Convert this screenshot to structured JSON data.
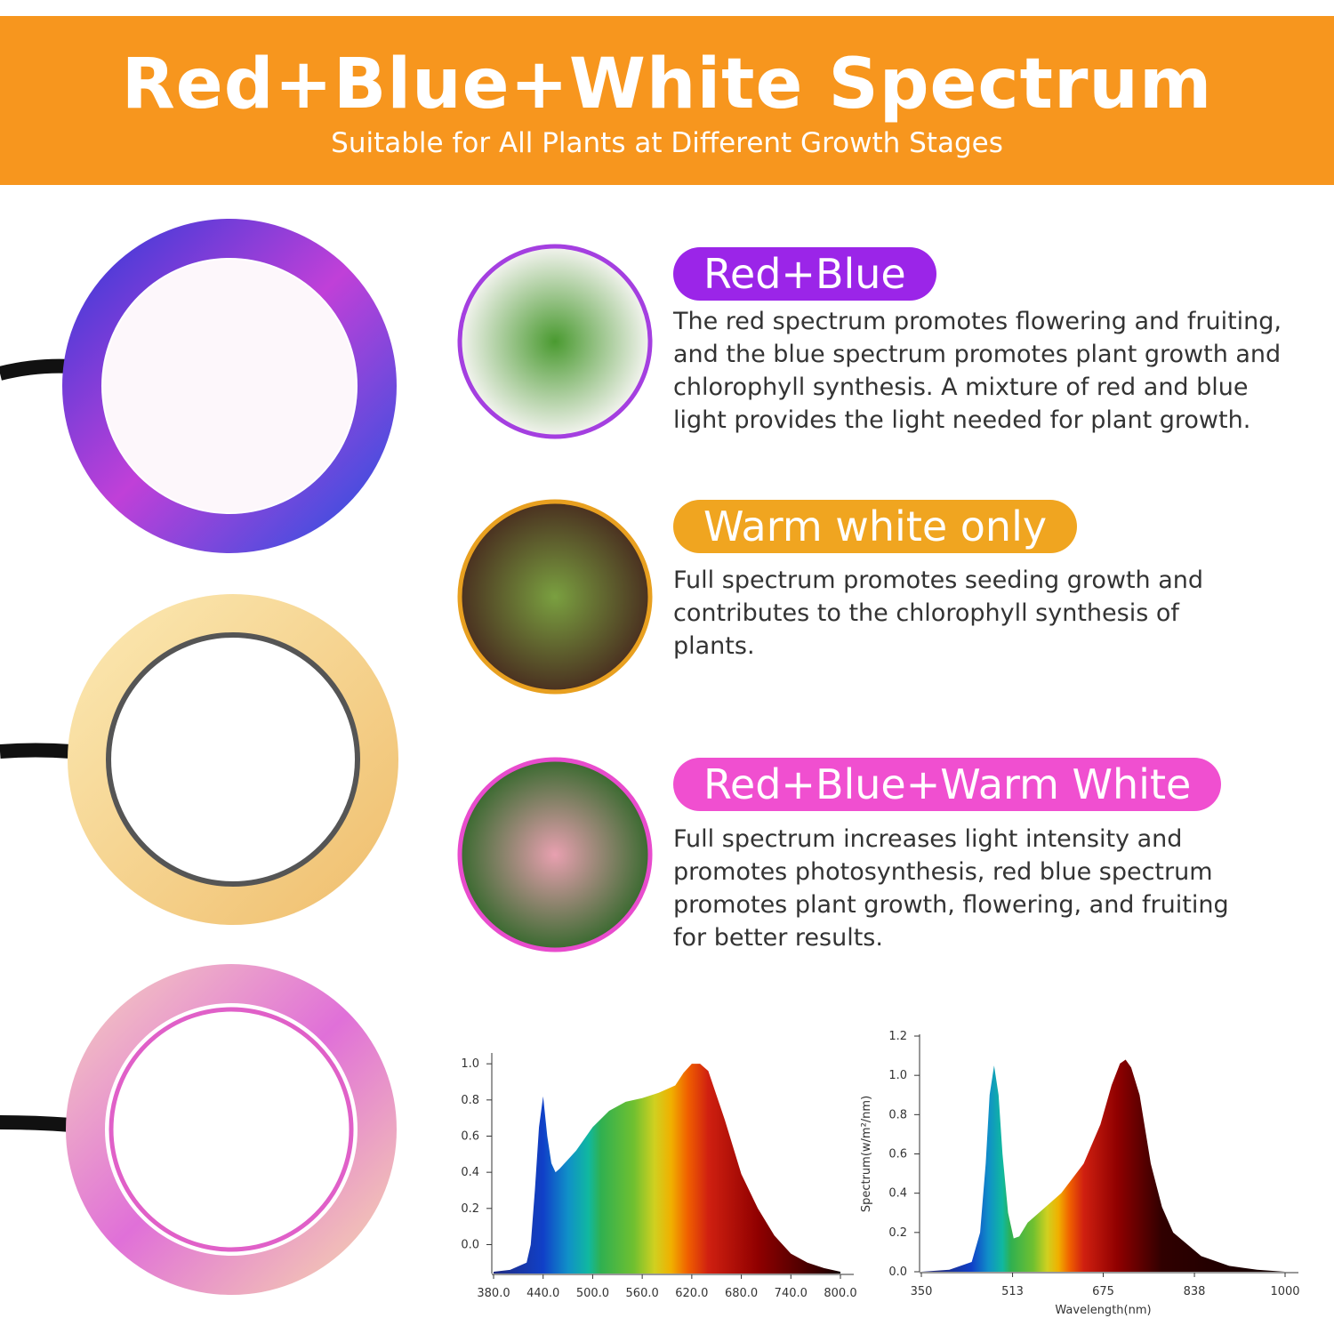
{
  "header": {
    "title": "Red+Blue+White Spectrum",
    "subtitle": "Suitable for All Plants at Different Growth Stages"
  },
  "sections": [
    {
      "title": "Red+Blue",
      "text": "The red spectrum promotes flowering and fruiting, and the blue spectrum promotes plant growth and chlorophyll synthesis. A mixture of red and blue light provides the light needed for plant growth."
    },
    {
      "title": "Warm white only",
      "text": "Full spectrum promotes seeding growth and contributes to the chlorophyll synthesis of plants."
    },
    {
      "title": "Red+Blue+Warm White",
      "text": "Full spectrum increases light intensity and promotes photosynthesis, red blue spectrum promotes plant growth, flowering, and fruiting for better results."
    }
  ],
  "chart_data": [
    {
      "type": "area",
      "x": [
        380,
        400,
        420,
        425,
        430,
        435,
        440,
        445,
        450,
        455,
        460,
        480,
        500,
        520,
        540,
        560,
        580,
        600,
        610,
        620,
        630,
        640,
        660,
        680,
        700,
        720,
        740,
        760,
        780,
        800
      ],
      "values": [
        -0.15,
        -0.14,
        -0.1,
        0.0,
        0.3,
        0.65,
        0.82,
        0.6,
        0.45,
        0.4,
        0.42,
        0.52,
        0.65,
        0.74,
        0.79,
        0.81,
        0.84,
        0.88,
        0.95,
        1.0,
        1.0,
        0.96,
        0.69,
        0.39,
        0.2,
        0.05,
        -0.05,
        -0.1,
        -0.13,
        -0.15
      ],
      "xlim": [
        380,
        800
      ],
      "ylim": [
        -0.16,
        1.05
      ],
      "xticks": [
        {
          "value": 380,
          "label": "380.0"
        },
        {
          "value": 440,
          "label": "440.0"
        },
        {
          "value": 500,
          "label": "500.0"
        },
        {
          "value": 560,
          "label": "560.0"
        },
        {
          "value": 620,
          "label": "620.0"
        },
        {
          "value": 680,
          "label": "680.0"
        },
        {
          "value": 740,
          "label": "740.0"
        },
        {
          "value": 800,
          "label": "800.0"
        }
      ],
      "yticks": [
        {
          "value": 0,
          "label": "0.0"
        },
        {
          "value": 0.2,
          "label": "0.2"
        },
        {
          "value": 0.4,
          "label": "0.4"
        },
        {
          "value": 0.6,
          "label": "0.6"
        },
        {
          "value": 0.8,
          "label": "0.8"
        },
        {
          "value": 1,
          "label": "1.0"
        }
      ]
    },
    {
      "type": "area",
      "xlabel": "Wavelength(nm)",
      "ylabel": "Spectrum(w/m²/nm)",
      "x": [
        350,
        400,
        440,
        455,
        465,
        472,
        480,
        488,
        495,
        505,
        515,
        525,
        540,
        560,
        600,
        640,
        670,
        690,
        705,
        715,
        725,
        740,
        760,
        780,
        800,
        850,
        900,
        950,
        1000
      ],
      "values": [
        0,
        0.01,
        0.05,
        0.2,
        0.55,
        0.9,
        1.05,
        0.9,
        0.6,
        0.3,
        0.17,
        0.18,
        0.25,
        0.3,
        0.4,
        0.55,
        0.75,
        0.95,
        1.06,
        1.08,
        1.04,
        0.9,
        0.55,
        0.33,
        0.2,
        0.08,
        0.03,
        0.01,
        0
      ],
      "xlim": [
        350,
        1000
      ],
      "ylim": [
        0,
        1.2
      ],
      "xticks": [
        350,
        513,
        675,
        838,
        1000
      ],
      "yticks": [
        {
          "value": 0,
          "label": "0.0"
        },
        {
          "value": 0.2,
          "label": "0.2"
        },
        {
          "value": 0.4,
          "label": "0.4"
        },
        {
          "value": 0.6,
          "label": "0.6"
        },
        {
          "value": 0.8,
          "label": "0.8"
        },
        {
          "value": 1,
          "label": "1.0"
        },
        {
          "value": 1.2,
          "label": "1.2"
        }
      ]
    }
  ]
}
